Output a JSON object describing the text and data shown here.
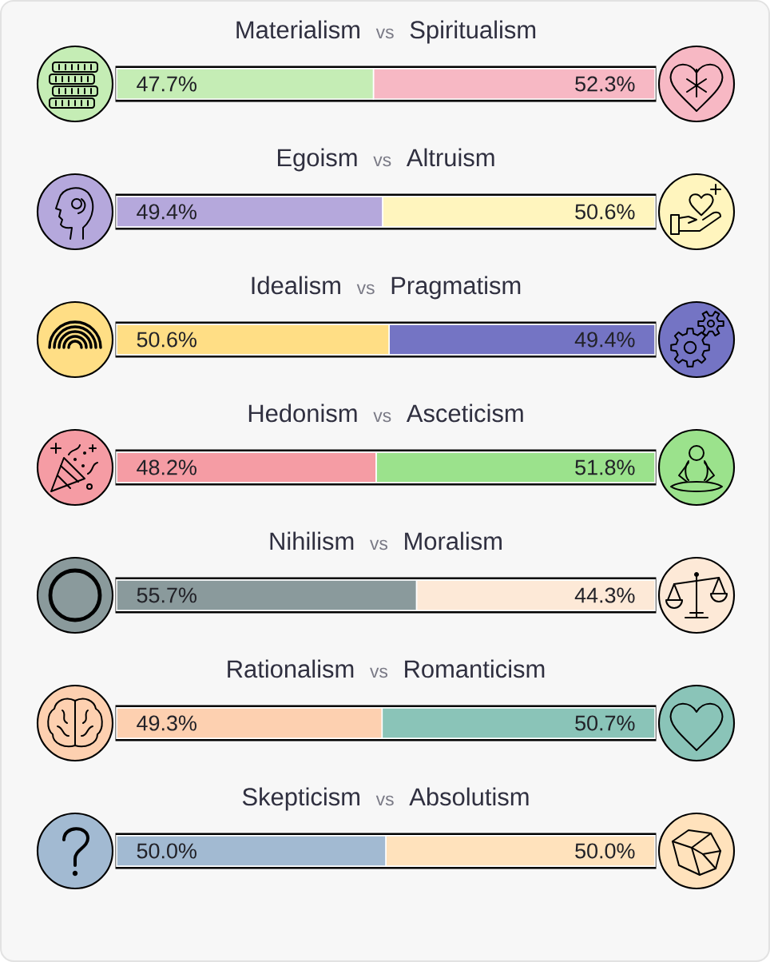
{
  "chart_data": [
    {
      "type": "bar",
      "orientation": "horizontal",
      "stacked": true,
      "categories": [
        null
      ],
      "annotations": [
        "vs"
      ],
      "series": [
        {
          "name": "Materialism",
          "color": "#c5edb5",
          "values": [
            47.7
          ],
          "value_labels": [
            "47.7%"
          ]
        },
        {
          "name": "Spiritualism",
          "color": "#f7b8c4",
          "values": [
            52.3
          ],
          "value_labels": [
            "52.3%"
          ]
        }
      ]
    },
    {
      "type": "bar",
      "orientation": "horizontal",
      "stacked": true,
      "categories": [
        null
      ],
      "annotations": [
        "vs"
      ],
      "series": [
        {
          "name": "Egoism",
          "color": "#b5a8dc",
          "values": [
            49.4
          ],
          "value_labels": [
            "49.4%"
          ]
        },
        {
          "name": "Altruism",
          "color": "#fff5be",
          "values": [
            50.6
          ],
          "value_labels": [
            "50.6%"
          ]
        }
      ]
    },
    {
      "type": "bar",
      "orientation": "horizontal",
      "stacked": true,
      "categories": [
        null
      ],
      "annotations": [
        "vs"
      ],
      "series": [
        {
          "name": "Idealism",
          "color": "#ffde85",
          "values": [
            50.6
          ],
          "value_labels": [
            "50.6%"
          ]
        },
        {
          "name": "Pragmatism",
          "color": "#7474c4",
          "values": [
            49.4
          ],
          "value_labels": [
            "49.4%"
          ]
        }
      ]
    },
    {
      "type": "bar",
      "orientation": "horizontal",
      "stacked": true,
      "categories": [
        null
      ],
      "annotations": [
        "vs"
      ],
      "series": [
        {
          "name": "Hedonism",
          "color": "#f59ca4",
          "values": [
            48.2
          ],
          "value_labels": [
            "48.2%"
          ]
        },
        {
          "name": "Asceticism",
          "color": "#9be28c",
          "values": [
            51.8
          ],
          "value_labels": [
            "51.8%"
          ]
        }
      ]
    },
    {
      "type": "bar",
      "orientation": "horizontal",
      "stacked": true,
      "categories": [
        null
      ],
      "annotations": [
        "vs"
      ],
      "series": [
        {
          "name": "Nihilism",
          "color": "#8a9a9c",
          "values": [
            55.7
          ],
          "value_labels": [
            "55.7%"
          ]
        },
        {
          "name": "Moralism",
          "color": "#fde9d7",
          "values": [
            44.3
          ],
          "value_labels": [
            "44.3%"
          ]
        }
      ]
    },
    {
      "type": "bar",
      "orientation": "horizontal",
      "stacked": true,
      "categories": [
        null
      ],
      "annotations": [
        "vs"
      ],
      "series": [
        {
          "name": "Rationalism",
          "color": "#fdd0b0",
          "values": [
            49.3
          ],
          "value_labels": [
            "49.3%"
          ]
        },
        {
          "name": "Romanticism",
          "color": "#8ac4b8",
          "values": [
            50.7
          ],
          "value_labels": [
            "50.7%"
          ]
        }
      ]
    },
    {
      "type": "bar",
      "orientation": "horizontal",
      "stacked": true,
      "categories": [
        null
      ],
      "annotations": [
        "vs"
      ],
      "series": [
        {
          "name": "Skepticism",
          "color": "#a2bad2",
          "values": [
            50.0
          ],
          "value_labels": [
            "50.0%"
          ]
        },
        {
          "name": "Absolutism",
          "color": "#ffe2bc",
          "values": [
            50.0
          ],
          "value_labels": [
            "50.0%"
          ]
        }
      ]
    }
  ]
}
